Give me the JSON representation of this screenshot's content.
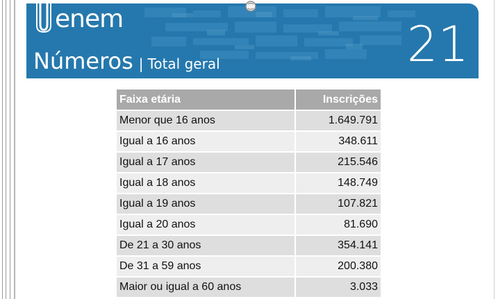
{
  "header": {
    "logo_text": "enem",
    "title": "Números",
    "separator": "|",
    "subtitle": "Total geral",
    "page_number": "21",
    "colors": {
      "banner": "#2578ad",
      "table_header": "#a9a9a9"
    }
  },
  "table": {
    "columns": [
      "Faixa etária",
      "Inscrições"
    ],
    "rows": [
      {
        "label": "Menor que 16 anos",
        "value": "1.649.791"
      },
      {
        "label": "Igual a 16 anos",
        "value": "348.611"
      },
      {
        "label": "Igual a 17 anos",
        "value": "215.546"
      },
      {
        "label": "Igual a 18 anos",
        "value": "148.749"
      },
      {
        "label": "Igual a 19 anos",
        "value": "107.821"
      },
      {
        "label": "Igual a 20 anos",
        "value": "81.690"
      },
      {
        "label": "De 21 a 30 anos",
        "value": "354.141"
      },
      {
        "label": "De 31 a 59 anos",
        "value": "200.380"
      },
      {
        "label": "Maior ou igual a 60 anos",
        "value": "3.033"
      }
    ]
  }
}
